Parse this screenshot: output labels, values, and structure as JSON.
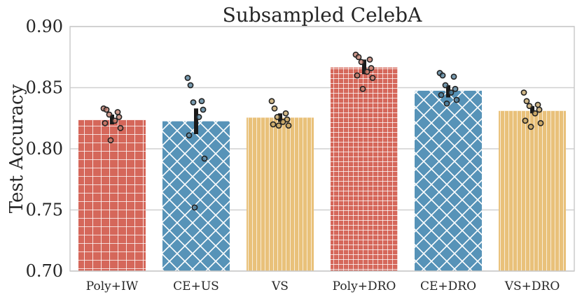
{
  "chart_data": {
    "type": "bar",
    "title": "Subsampled CelebA",
    "xlabel": "",
    "ylabel": "Test Accuracy",
    "ylim": [
      0.7,
      0.9
    ],
    "yticks": [
      0.7,
      0.75,
      0.8,
      0.85,
      0.9
    ],
    "ytick_labels": [
      "0.70",
      "0.75",
      "0.80",
      "0.85",
      "0.90"
    ],
    "grid": true,
    "categories": [
      "Poly+IW",
      "CE+US",
      "VS",
      "Poly+DRO",
      "CE+DRO",
      "VS+DRO"
    ],
    "values": [
      0.8235,
      0.8225,
      0.8255,
      0.8665,
      0.8475,
      0.831
    ],
    "error_bars": [
      [
        0.82,
        0.828
      ],
      [
        0.812,
        0.833
      ],
      [
        0.822,
        0.829
      ],
      [
        0.861,
        0.873
      ],
      [
        0.842,
        0.852
      ],
      [
        0.829,
        0.835
      ]
    ],
    "points": [
      [
        0.833,
        0.832,
        0.83,
        0.828,
        0.826,
        0.823,
        0.821,
        0.817,
        0.807
      ],
      [
        0.858,
        0.852,
        0.839,
        0.838,
        0.832,
        0.826,
        0.811,
        0.792,
        0.752
      ],
      [
        0.839,
        0.833,
        0.829,
        0.826,
        0.824,
        0.822,
        0.82,
        0.819,
        0.819
      ],
      [
        0.877,
        0.875,
        0.873,
        0.871,
        0.866,
        0.863,
        0.86,
        0.858,
        0.849
      ],
      [
        0.862,
        0.86,
        0.859,
        0.852,
        0.849,
        0.846,
        0.844,
        0.84,
        0.837
      ],
      [
        0.846,
        0.839,
        0.836,
        0.835,
        0.832,
        0.829,
        0.823,
        0.821,
        0.818
      ]
    ],
    "colors": [
      "#d5675a",
      "#5793b8",
      "#e9c17a",
      "#d5675a",
      "#5793b8",
      "#e9c17a"
    ],
    "point_colors": [
      "#c07a6a",
      "#4a7894",
      "#c2a060",
      "#c07a6a",
      "#4a7894",
      "#c2a060"
    ],
    "hatches": [
      "grid",
      "diamond",
      "vertical",
      "grid-fine",
      "diamond",
      "vertical"
    ]
  }
}
